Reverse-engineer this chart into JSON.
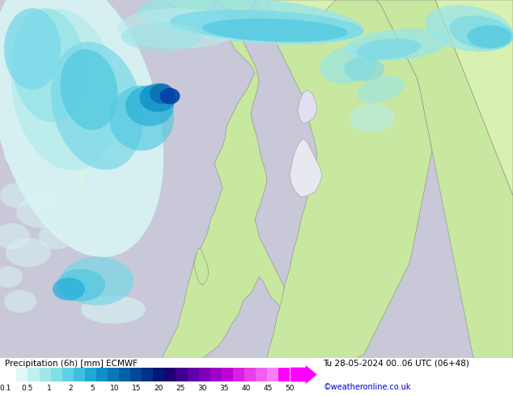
{
  "title_left": "Precipitation (6h) [mm] ECMWF",
  "title_right": "Tu 28-05-2024 00..06 UTC (06+48)",
  "credit": "©weatheronline.co.uk",
  "colorbar_labels": [
    "0.1",
    "0.5",
    "1",
    "2",
    "5",
    "10",
    "15",
    "20",
    "25",
    "30",
    "35",
    "40",
    "45",
    "50"
  ],
  "cmap_colors": [
    "#ffffff",
    "#e0f8f8",
    "#c0f0f0",
    "#a0e8e8",
    "#80e0e8",
    "#60d0e8",
    "#40c0e0",
    "#20a8d8",
    "#1090c8",
    "#0878b8",
    "#0060a8",
    "#004898",
    "#003088",
    "#001878",
    "#200070",
    "#400090",
    "#6000a8",
    "#8000b8",
    "#a000c8",
    "#c000d8",
    "#d820e0",
    "#e840e8",
    "#f060f0",
    "#f880f8",
    "#ff00ff"
  ],
  "ocean_color": "#c8c8d8",
  "land_color": "#c8e8a0",
  "land_color2": "#d8f0b0",
  "fig_width": 6.34,
  "fig_height": 4.9,
  "dpi": 100
}
